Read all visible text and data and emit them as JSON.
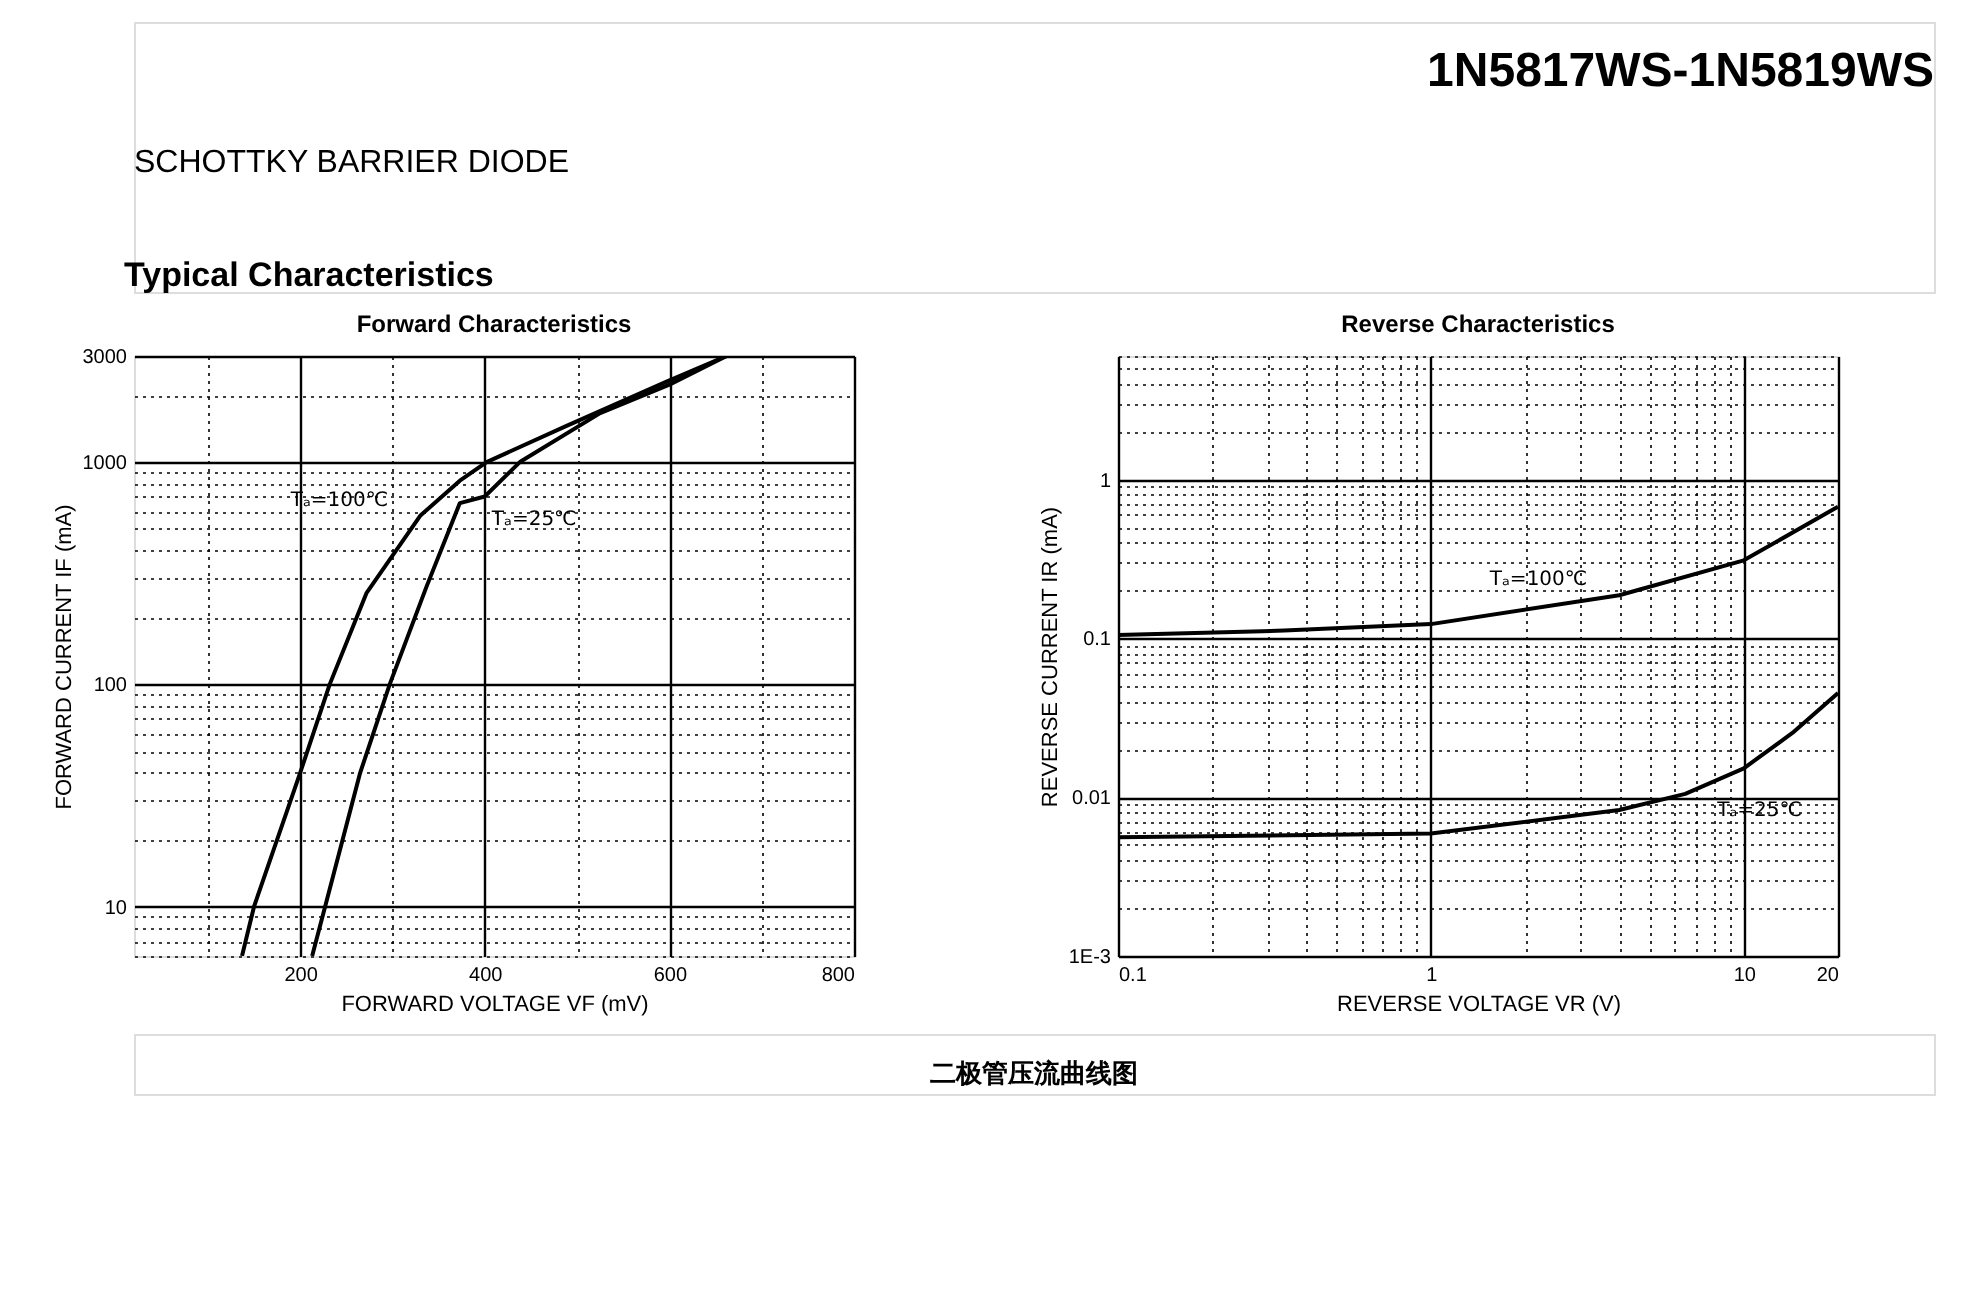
{
  "chart_data": [
    {
      "type": "other",
      "title": "1N5817WS-1N5819WS",
      "subtitle": "SCHOTTKY BARRIER DIODE",
      "annotations": [
        "Typical Characteristics",
        "二极管压流曲线图"
      ]
    },
    {
      "type": "line",
      "title": "Forward Characteristics",
      "xlabel": "FORWARD VOLTAGE   VF   (mV)",
      "ylabel": "FORWARD CURRENT   IF   (mA)",
      "log": "y",
      "grid": true,
      "legend": false,
      "line_style": "solid",
      "xlim": [
        20,
        800
      ],
      "xticks": [
        {
          "value": 100,
          "label": null
        },
        200,
        {
          "value": 300,
          "label": null
        },
        400,
        {
          "value": 500,
          "label": null
        },
        600,
        {
          "value": 700,
          "label": null
        },
        800
      ],
      "ylim": [
        6,
        3000
      ],
      "yticks": [
        {
          "value": 6,
          "label": null
        },
        {
          "value": 7,
          "label": null
        },
        {
          "value": 8,
          "label": null
        },
        {
          "value": 9,
          "label": null
        },
        10,
        {
          "value": 20,
          "label": null
        },
        {
          "value": 30,
          "label": null
        },
        {
          "value": 40,
          "label": null
        },
        {
          "value": 50,
          "label": null
        },
        {
          "value": 60,
          "label": null
        },
        {
          "value": 70,
          "label": null
        },
        {
          "value": 80,
          "label": null
        },
        {
          "value": 90,
          "label": null
        },
        100,
        {
          "value": 200,
          "label": null
        },
        {
          "value": 300,
          "label": null
        },
        {
          "value": 400,
          "label": null
        },
        {
          "value": 500,
          "label": null
        },
        {
          "value": 600,
          "label": null
        },
        {
          "value": 700,
          "label": null
        },
        {
          "value": 800,
          "label": null
        },
        {
          "value": 900,
          "label": null
        },
        1000,
        {
          "value": 2000,
          "label": null
        },
        3000
      ],
      "series": [
        {
          "name": "Tₐ=100℃",
          "color": "#000000",
          "x": [
            137,
            150,
            200,
            232,
            272,
            330,
            373,
            402,
            488,
            597,
            662
          ],
          "values": [
            6,
            10,
            40,
            100,
            258,
            573,
            825,
            1000,
            1450,
            2300,
            3000
          ]
        },
        {
          "name": "Tₐ=25℃",
          "color": "#000000",
          "x": [
            213,
            227,
            265,
            297,
            337,
            373,
            400,
            438,
            525,
            600,
            662
          ],
          "values": [
            6,
            10,
            40,
            100,
            276,
            654,
            700,
            1000,
            1660,
            2230,
            3000
          ]
        }
      ]
    },
    {
      "type": "line",
      "title": "Reverse    Characteristics",
      "xlabel": "REVERSE VOLTAGE   VR   (V)",
      "ylabel": "REVERSE CURRENT   IR   (mA)",
      "log": "xy",
      "grid": true,
      "legend": false,
      "line_style": "solid",
      "xlim": [
        0.1,
        20
      ],
      "xticks": [
        0.1,
        {
          "value": 0.2,
          "label": null
        },
        {
          "value": 0.3,
          "label": null
        },
        {
          "value": 0.4,
          "label": null
        },
        {
          "value": 0.5,
          "label": null
        },
        {
          "value": 0.6,
          "label": null
        },
        {
          "value": 0.7,
          "label": null
        },
        {
          "value": 0.8,
          "label": null
        },
        {
          "value": 0.9,
          "label": null
        },
        1,
        {
          "value": 2,
          "label": null
        },
        {
          "value": 3,
          "label": null
        },
        {
          "value": 4,
          "label": null
        },
        {
          "value": 5,
          "label": null
        },
        {
          "value": 6,
          "label": null
        },
        {
          "value": 7,
          "label": null
        },
        {
          "value": 8,
          "label": null
        },
        {
          "value": 9,
          "label": null
        },
        10,
        20
      ],
      "ylim": [
        0.001,
        6
      ],
      "yticks": [
        {
          "value": 0.001,
          "label": "1E-3"
        },
        {
          "value": 0.002,
          "label": null
        },
        {
          "value": 0.003,
          "label": null
        },
        {
          "value": 0.004,
          "label": null
        },
        {
          "value": 0.005,
          "label": null
        },
        {
          "value": 0.006,
          "label": null
        },
        {
          "value": 0.007,
          "label": null
        },
        {
          "value": 0.008,
          "label": null
        },
        {
          "value": 0.009,
          "label": null
        },
        0.01,
        {
          "value": 0.02,
          "label": null
        },
        {
          "value": 0.03,
          "label": null
        },
        {
          "value": 0.04,
          "label": null
        },
        {
          "value": 0.05,
          "label": null
        },
        {
          "value": 0.06,
          "label": null
        },
        {
          "value": 0.07,
          "label": null
        },
        {
          "value": 0.08,
          "label": null
        },
        {
          "value": 0.09,
          "label": null
        },
        0.1,
        {
          "value": 0.2,
          "label": null
        },
        {
          "value": 0.3,
          "label": null
        },
        {
          "value": 0.4,
          "label": null
        },
        {
          "value": 0.5,
          "label": null
        },
        {
          "value": 0.6,
          "label": null
        },
        {
          "value": 0.7,
          "label": null
        },
        {
          "value": 0.8,
          "label": null
        },
        {
          "value": 0.9,
          "label": null
        },
        1,
        {
          "value": 2,
          "label": null
        },
        {
          "value": 3,
          "label": null
        },
        {
          "value": 4,
          "label": null
        },
        {
          "value": 5,
          "label": null
        },
        {
          "value": 6,
          "label": null
        }
      ],
      "series": [
        {
          "name": "Tₐ=100℃",
          "color": "#000000",
          "x": [
            0.1,
            0.34,
            1,
            4,
            10,
            20
          ],
          "values": [
            0.105,
            0.112,
            0.123,
            0.187,
            0.31,
            0.675
          ]
        },
        {
          "name": "Tₐ=25℃",
          "color": "#000000",
          "x": [
            0.1,
            1,
            4,
            6.5,
            10,
            14.3,
            20
          ],
          "values": [
            0.0056,
            0.0059,
            0.0083,
            0.0105,
            0.0152,
            0.0254,
            0.0453
          ]
        }
      ]
    }
  ]
}
